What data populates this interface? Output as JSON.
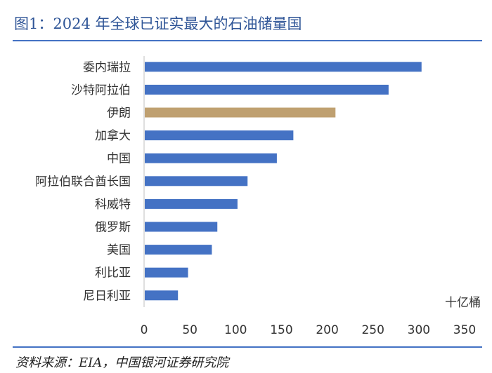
{
  "header": {
    "title": "图1：2024 年全球已证实最大的石油储量国"
  },
  "footer": {
    "source": "资料来源：EIA，中国银河证券研究院"
  },
  "colors": {
    "bar": "#4472c4",
    "highlight": "#bfa070",
    "rule": "#4472c4",
    "axis": "#bfbfbf"
  },
  "chart_data": {
    "type": "bar",
    "orientation": "horizontal",
    "title": "2024 年全球已证实最大的石油储量国",
    "unit": "十亿桶",
    "categories": [
      "委内瑞拉",
      "沙特阿拉伯",
      "伊朗",
      "加拿大",
      "中国",
      "阿拉伯联合酋长国",
      "科威特",
      "俄罗斯",
      "美国",
      "利比亚",
      "尼日利亚"
    ],
    "values": [
      303,
      267,
      209,
      163,
      145,
      113,
      102,
      80,
      74,
      48,
      37
    ],
    "highlight_index": 2,
    "xlim": [
      0,
      350
    ],
    "xticks": [
      "0",
      "50",
      "100",
      "150",
      "200",
      "250",
      "300",
      "350"
    ]
  }
}
